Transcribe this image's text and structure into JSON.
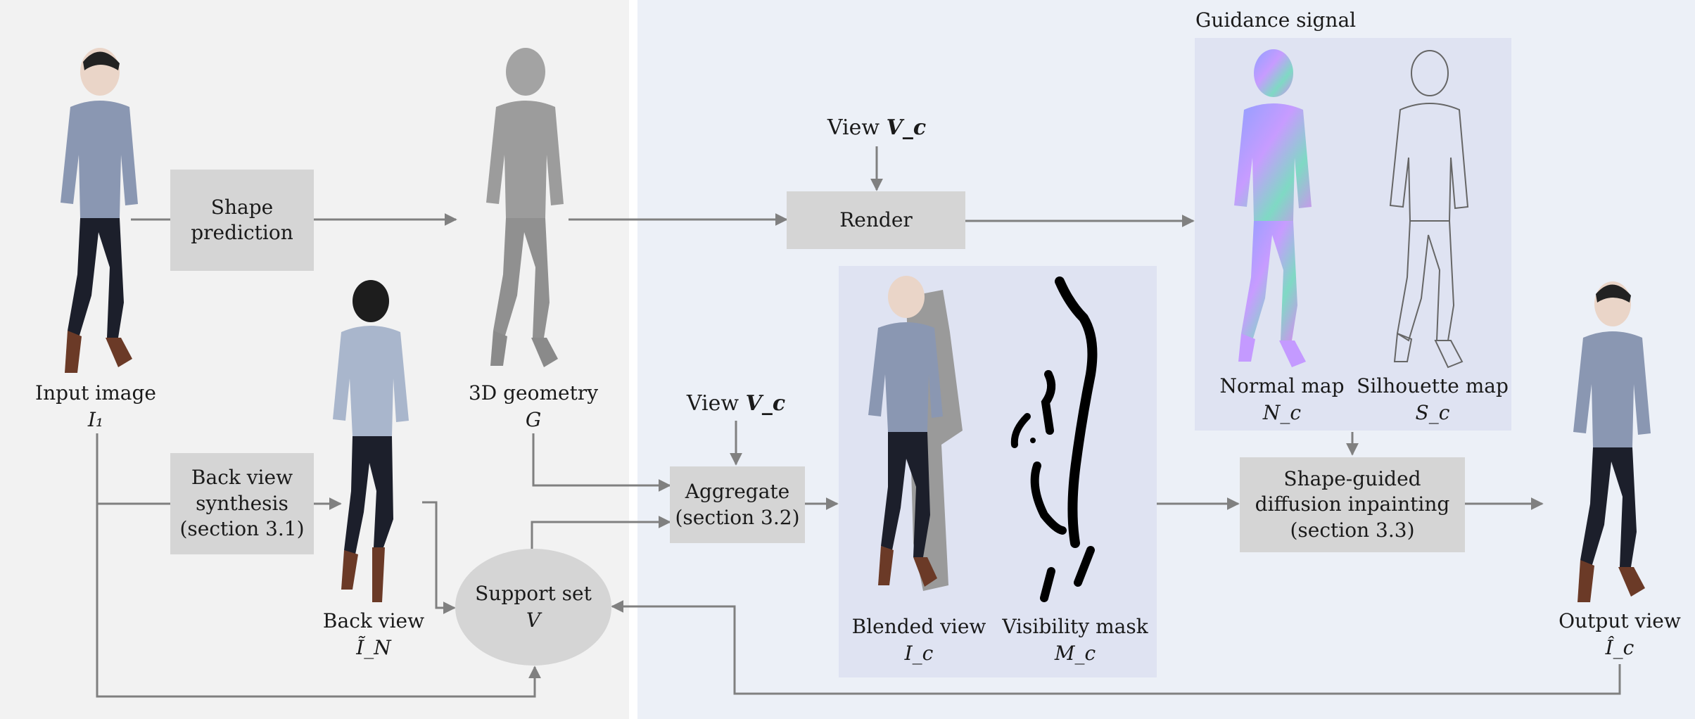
{
  "title": "Guidance signal",
  "boxes": {
    "shape_prediction": "Shape\nprediction",
    "back_view_synthesis": "Back view\nsynthesis\n(section 3.1)",
    "render": "Render",
    "aggregate": "Aggregate\n(section 3.2)",
    "inpainting": "Shape-guided\ndiffusion  inpainting\n(section  3.3)"
  },
  "support_set": {
    "name": "Support set",
    "symbol": "V"
  },
  "labels": {
    "input_image": {
      "name": "Input image",
      "symbol": "I₁"
    },
    "geometry": {
      "name": "3D geometry",
      "symbol": "G"
    },
    "back_view": {
      "name": "Back view",
      "symbol": "Ĩ_N"
    },
    "blended_view": {
      "name": "Blended view",
      "symbol": "I_c"
    },
    "visibility_mask": {
      "name": "Visibility mask",
      "symbol": "M_c"
    },
    "normal_map": {
      "name": "Normal map",
      "symbol": "N_c"
    },
    "silhouette_map": {
      "name": "Silhouette  map",
      "symbol": "S_c"
    },
    "output_view": {
      "name": "Output view",
      "symbol": "Î_c"
    }
  },
  "view_label": {
    "prefix": "View",
    "symbol": "V_c"
  },
  "colors": {
    "left_panel": "#f2f2f2",
    "right_panel": "#ecf0f7",
    "inner_panel": "#dfe3f2",
    "box": "#d5d5d5",
    "arrow": "#808080"
  }
}
